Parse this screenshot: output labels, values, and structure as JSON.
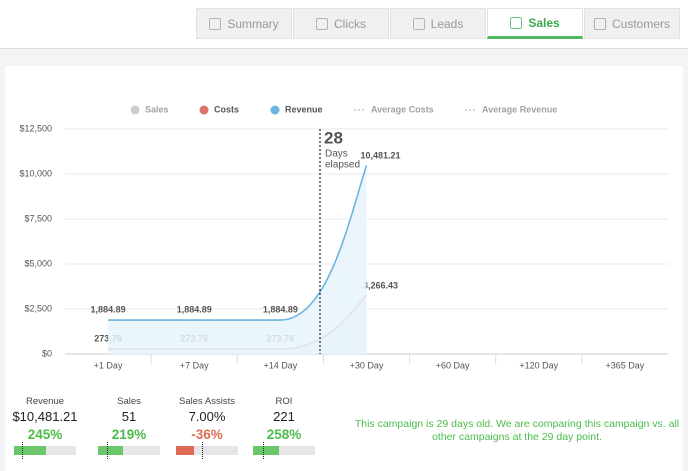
{
  "tabs": [
    "Summary",
    "Clicks",
    "Leads",
    "Sales",
    "Customers"
  ],
  "active_tab": 3,
  "chart_data": {
    "type": "line",
    "categories": [
      "+1 Day",
      "+7 Day",
      "+14 Day",
      "+30 Day",
      "+60 Day",
      "+120 Day",
      "+365 Day"
    ],
    "series": [
      {
        "name": "Sales",
        "color": "#cccccc",
        "marker": "dot",
        "hidden": true
      },
      {
        "name": "Costs",
        "color": "#d9756a",
        "fill": "#e9e5ec",
        "marker": "dot",
        "hidden": false,
        "values": [
          273.76,
          273.76,
          273.76,
          3266.43,
          null,
          null,
          null
        ],
        "value_labels": [
          "273.76",
          "273.76",
          "273.76",
          "3,266.43",
          null,
          null,
          null
        ]
      },
      {
        "name": "Revenue",
        "color": "#6cb4e0",
        "fill": "#e8f4fb",
        "marker": "dot",
        "hidden": false,
        "values": [
          1884.89,
          1884.89,
          1884.89,
          10481.21,
          null,
          null,
          null
        ],
        "value_labels": [
          "1,884.89",
          "1,884.89",
          "1,884.89",
          "10,481.21",
          null,
          null,
          null
        ]
      },
      {
        "name": "Average Costs",
        "color": "#cccccc",
        "marker": "dotted",
        "hidden": true
      },
      {
        "name": "Average Revenue",
        "color": "#cccccc",
        "marker": "dotted",
        "hidden": true
      }
    ],
    "ylim": [
      0,
      12500
    ],
    "yticks": [
      {
        "value": 0,
        "label": "$0"
      },
      {
        "value": 2500,
        "label": "$2,500"
      },
      {
        "value": 5000,
        "label": "$5,000"
      },
      {
        "value": 7500,
        "label": "$7,500"
      },
      {
        "value": 10000,
        "label": "$10,000"
      },
      {
        "value": 12500,
        "label": "$12,500"
      }
    ],
    "grid": true,
    "annotation": {
      "number": 28,
      "lines": [
        "Days",
        "elapsed"
      ]
    }
  },
  "metrics": [
    {
      "label": "Revenue",
      "value": "$10,481.21",
      "change": "245%",
      "trend": "up"
    },
    {
      "label": "Sales",
      "value": "51",
      "change": "219%",
      "trend": "up"
    },
    {
      "label": "Sales Assists",
      "value": "7.00%",
      "change": "-36%",
      "trend": "down"
    },
    {
      "label": "ROI",
      "value": "221",
      "change": "258%",
      "trend": "up"
    }
  ],
  "message": "This campaign is 29 days old. We are comparing this campaign vs. all other campaigns at the 29 day point."
}
